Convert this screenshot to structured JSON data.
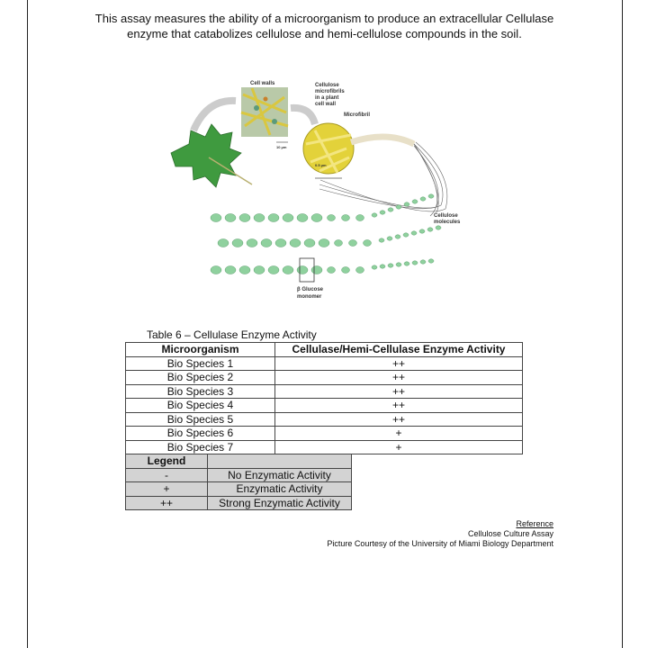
{
  "intro": {
    "line1": "This assay measures the ability of a microorganism to produce an extracellular Cellulase",
    "line2": "enzyme that catabolizes cellulose and hemi-cellulose compounds in the soil."
  },
  "figure": {
    "labels": {
      "cell_walls": "Cell walls",
      "microfibrils_1": "Cellulose",
      "microfibrils_2": "microfibrils",
      "microfibrils_3": "in a plant",
      "microfibrils_4": "cell wall",
      "microfibril": "Microfibril",
      "scale_10": "10 µm",
      "scale_05": "0.5 µm",
      "molecules_1": "Cellulose",
      "molecules_2": "molecules",
      "glucose_1": "β Glucose",
      "glucose_2": "monomer"
    },
    "colors": {
      "leaf": "#3f9a3f",
      "fibril": "#e3d23a",
      "glucose": "#8fd19e"
    }
  },
  "table": {
    "caption": "Table 6 – Cellulase Enzyme Activity",
    "headers": [
      "Microorganism",
      "Cellulase/Hemi-Cellulase Enzyme Activity"
    ],
    "rows": [
      [
        "Bio Species 1",
        "++"
      ],
      [
        "Bio Species 2",
        "++"
      ],
      [
        "Bio Species 3",
        "++"
      ],
      [
        "Bio Species 4",
        "++"
      ],
      [
        "Bio Species 5",
        "++"
      ],
      [
        "Bio Species 6",
        "+"
      ],
      [
        "Bio Species 7",
        "+"
      ]
    ]
  },
  "legend": {
    "title": "Legend",
    "rows": [
      [
        "-",
        "No Enzymatic Activity"
      ],
      [
        "+",
        "Enzymatic Activity"
      ],
      [
        "++",
        "Strong Enzymatic Activity"
      ]
    ]
  },
  "reference": {
    "title": "Reference",
    "line1": "Cellulose Culture Assay",
    "line2": "Picture Courtesy of the University of Miami Biology Department"
  }
}
